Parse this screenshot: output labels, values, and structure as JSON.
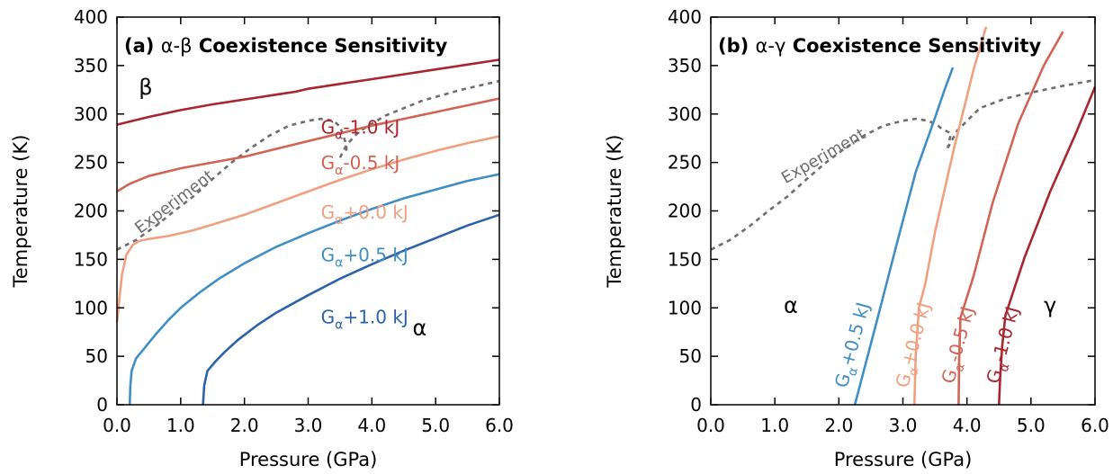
{
  "chart_data": [
    {
      "panel": "a",
      "type": "line",
      "title_prefix": "(a) ",
      "title_greek": "α-β",
      "title_suffix": " Coexistence Sensitivity",
      "xlabel": "Pressure (GPa)",
      "ylabel": "Temperature (K)",
      "xlim": [
        0,
        6
      ],
      "ylim": [
        0,
        400
      ],
      "xticks": [
        "0.0",
        "1.0",
        "2.0",
        "3.0",
        "4.0",
        "5.0",
        "6.0"
      ],
      "yticks": [
        "0",
        "50",
        "100",
        "150",
        "200",
        "250",
        "300",
        "350",
        "400"
      ],
      "grid": false,
      "phase_labels": [
        {
          "text": "β",
          "x": 0.45,
          "y": 320
        },
        {
          "text": "α",
          "x": 4.75,
          "y": 72
        }
      ],
      "series": [
        {
          "label_base": "G",
          "label_sub": "α",
          "label_rest": "-1.0 kJ",
          "color": "#a8262f",
          "label_pos": [
            3.2,
            280
          ],
          "label_rot": 0,
          "points": [
            [
              0,
              289
            ],
            [
              0.5,
              297
            ],
            [
              1,
              304
            ],
            [
              1.5,
              310
            ],
            [
              2,
              315
            ],
            [
              2.5,
              320
            ],
            [
              2.8,
              323
            ],
            [
              3,
              326
            ],
            [
              3.5,
              331
            ],
            [
              4,
              336
            ],
            [
              4.5,
              341
            ],
            [
              5,
              346
            ],
            [
              5.5,
              351
            ],
            [
              6,
              356
            ]
          ]
        },
        {
          "label_base": "G",
          "label_sub": "α",
          "label_rest": "-0.5 kJ",
          "color": "#d26455",
          "label_pos": [
            3.2,
            243
          ],
          "label_rot": 0,
          "points": [
            [
              0,
              220
            ],
            [
              0.2,
              228
            ],
            [
              0.5,
              236
            ],
            [
              1,
              244
            ],
            [
              1.5,
              250
            ],
            [
              2,
              256
            ],
            [
              2.5,
              264
            ],
            [
              3,
              272
            ],
            [
              3.5,
              280
            ],
            [
              4,
              288
            ],
            [
              4.5,
              295
            ],
            [
              5,
              302
            ],
            [
              5.5,
              309
            ],
            [
              6,
              316
            ]
          ]
        },
        {
          "label_base": "G",
          "label_sub": "α",
          "label_rest": "+0.0 kJ",
          "color": "#f0a080",
          "label_pos": [
            3.2,
            192
          ],
          "label_rot": 0,
          "points": [
            [
              0,
              85
            ],
            [
              0.04,
              110
            ],
            [
              0.08,
              135
            ],
            [
              0.15,
              155
            ],
            [
              0.25,
              165
            ],
            [
              0.35,
              169
            ],
            [
              0.5,
              171
            ],
            [
              0.8,
              174
            ],
            [
              1.2,
              180
            ],
            [
              1.5,
              186
            ],
            [
              2,
              196
            ],
            [
              2.5,
              208
            ],
            [
              3,
              220
            ],
            [
              3.5,
              232
            ],
            [
              4,
              243
            ],
            [
              4.5,
              253
            ],
            [
              5,
              262
            ],
            [
              5.5,
              270
            ],
            [
              6,
              277
            ]
          ]
        },
        {
          "label_base": "G",
          "label_sub": "α",
          "label_rest": "+0.5 kJ",
          "color": "#3f8fc4",
          "label_pos": [
            3.2,
            148
          ],
          "label_rot": 0,
          "points": [
            [
              0.2,
              0
            ],
            [
              0.21,
              20
            ],
            [
              0.23,
              35
            ],
            [
              0.3,
              48
            ],
            [
              0.45,
              60
            ],
            [
              0.6,
              72
            ],
            [
              0.8,
              87
            ],
            [
              1,
              100
            ],
            [
              1.3,
              116
            ],
            [
              1.6,
              130
            ],
            [
              2,
              146
            ],
            [
              2.5,
              163
            ],
            [
              3,
              177
            ],
            [
              3.5,
              190
            ],
            [
              4,
              202
            ],
            [
              4.5,
              213
            ],
            [
              5,
              222
            ],
            [
              5.5,
              231
            ],
            [
              6,
              238
            ]
          ]
        },
        {
          "label_base": "G",
          "label_sub": "α",
          "label_rest": "+1.0 kJ",
          "color": "#2c62a8",
          "label_pos": [
            3.2,
            84
          ],
          "label_rot": 0,
          "points": [
            [
              1.35,
              0
            ],
            [
              1.37,
              20
            ],
            [
              1.42,
              35
            ],
            [
              1.55,
              45
            ],
            [
              1.7,
              55
            ],
            [
              1.9,
              67
            ],
            [
              2.2,
              82
            ],
            [
              2.5,
              95
            ],
            [
              3,
              113
            ],
            [
              3.5,
              130
            ],
            [
              4,
              145
            ],
            [
              4.5,
              159
            ],
            [
              5,
              172
            ],
            [
              5.5,
              185
            ],
            [
              6,
              196
            ]
          ]
        }
      ],
      "experiment": {
        "label": "Experiment",
        "label_pos": [
          0.95,
          205
        ],
        "label_rot": -37,
        "color": "#6e6e6e",
        "segments": [
          [
            [
              0,
              160
            ],
            [
              0.3,
              170
            ],
            [
              0.6,
              184
            ],
            [
              0.9,
              200
            ],
            [
              1.2,
              215
            ],
            [
              1.5,
              233
            ],
            [
              1.8,
              250
            ],
            [
              2.1,
              265
            ],
            [
              2.4,
              278
            ],
            [
              2.7,
              288
            ],
            [
              3,
              293
            ],
            [
              3.2,
              295
            ],
            [
              3.4,
              293
            ],
            [
              3.5,
              287
            ],
            [
              3.55,
              278
            ],
            [
              3.6,
              268
            ],
            [
              3.6,
              258
            ]
          ],
          [
            [
              3.5,
              255
            ],
            [
              3.6,
              268
            ],
            [
              3.8,
              282
            ],
            [
              4.2,
              298
            ],
            [
              4.8,
              314
            ],
            [
              5.4,
              325
            ],
            [
              6,
              334
            ]
          ]
        ]
      }
    },
    {
      "panel": "b",
      "type": "line",
      "title_prefix": "(b) ",
      "title_greek": "α-γ",
      "title_suffix": " Coexistence Sensitivity",
      "xlabel": "Pressure (GPa)",
      "ylabel": "Temperature (K)",
      "xlim": [
        0,
        6
      ],
      "ylim": [
        0,
        400
      ],
      "xticks": [
        "0.0",
        "1.0",
        "2.0",
        "3.0",
        "4.0",
        "5.0",
        "6.0"
      ],
      "yticks": [
        "0",
        "50",
        "100",
        "150",
        "200",
        "250",
        "300",
        "350",
        "400"
      ],
      "grid": false,
      "phase_labels": [
        {
          "text": "α",
          "x": 1.25,
          "y": 95
        },
        {
          "text": "γ",
          "x": 5.3,
          "y": 95
        }
      ],
      "series": [
        {
          "label_base": "G",
          "label_sub": "α",
          "label_rest": "+0.5 kJ",
          "color": "#3f8fc4",
          "label_pos": [
            2.3,
            60
          ],
          "label_rot": -75,
          "points": [
            [
              2.25,
              0
            ],
            [
              2.6,
              88
            ],
            [
              2.9,
              165
            ],
            [
              3.2,
              240
            ],
            [
              3.5,
              296
            ],
            [
              3.65,
              325
            ],
            [
              3.78,
              348
            ]
          ]
        },
        {
          "label_base": "G",
          "label_sub": "α",
          "label_rest": "+0.0 kJ",
          "color": "#f0a080",
          "label_pos": [
            3.25,
            60
          ],
          "label_rot": -75,
          "points": [
            [
              3.18,
              0
            ],
            [
              3.2,
              50
            ],
            [
              3.25,
              100
            ],
            [
              3.35,
              125
            ],
            [
              3.5,
              178
            ],
            [
              3.8,
              265
            ],
            [
              4.1,
              345
            ],
            [
              4.3,
              390
            ]
          ]
        },
        {
          "label_base": "G",
          "label_sub": "α",
          "label_rest": "-0.5 kJ",
          "color": "#d26455",
          "label_pos": [
            3.95,
            60
          ],
          "label_rot": -75,
          "points": [
            [
              3.87,
              0
            ],
            [
              3.88,
              50
            ],
            [
              3.9,
              90
            ],
            [
              4.1,
              132
            ],
            [
              4.4,
              208
            ],
            [
              4.8,
              290
            ],
            [
              5.2,
              350
            ],
            [
              5.5,
              385
            ]
          ]
        },
        {
          "label_base": "G",
          "label_sub": "α",
          "label_rest": "-1.0 kJ",
          "color": "#a8262f",
          "label_pos": [
            4.65,
            60
          ],
          "label_rot": -75,
          "points": [
            [
              4.5,
              0
            ],
            [
              4.52,
              30
            ],
            [
              4.55,
              60
            ],
            [
              4.6,
              92
            ],
            [
              4.9,
              152
            ],
            [
              5.3,
              220
            ],
            [
              5.7,
              280
            ],
            [
              6,
              328
            ]
          ]
        }
      ],
      "experiment": {
        "label": "Experiment",
        "label_pos": [
          1.8,
          252
        ],
        "label_rot": -30,
        "color": "#6e6e6e",
        "segments": [
          [
            [
              0,
              160
            ],
            [
              0.3,
              170
            ],
            [
              0.6,
              184
            ],
            [
              0.9,
              200
            ],
            [
              1.2,
              215
            ],
            [
              1.5,
              233
            ],
            [
              1.8,
              250
            ],
            [
              2.1,
              265
            ],
            [
              2.4,
              278
            ],
            [
              2.7,
              288
            ],
            [
              3,
              293
            ],
            [
              3.2,
              295
            ],
            [
              3.4,
              293
            ],
            [
              3.55,
              288
            ],
            [
              3.6,
              285
            ],
            [
              3.75,
              280
            ],
            [
              3.7,
              265
            ]
          ],
          [
            [
              3.7,
              265
            ],
            [
              3.85,
              283
            ],
            [
              4.2,
              306
            ],
            [
              4.6,
              316
            ],
            [
              5,
              322
            ],
            [
              5.5,
              329
            ],
            [
              6,
              335
            ]
          ]
        ]
      }
    }
  ]
}
